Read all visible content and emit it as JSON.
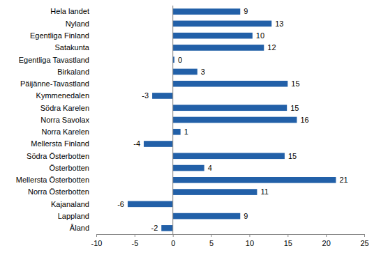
{
  "chart_data": {
    "type": "bar",
    "orientation": "horizontal",
    "categories": [
      "Hela landet",
      "Nyland",
      "Egentliga Finland",
      "Satakunta",
      "Egentliga Tavastland",
      "Birkaland",
      "Päijänne-Tavastland",
      "Kymmenedalen",
      "Södra Karelen",
      "Norra Savolax",
      "Norra Karelen",
      "Mellersta Finland",
      "Södra Österbotten",
      "Österbotten",
      "Mellersta Österbotten",
      "Norra Österbotten",
      "Kajanaland",
      "Lappland",
      "Åland"
    ],
    "values": [
      8.8,
      12.9,
      10.4,
      11.9,
      0.2,
      3.2,
      15.0,
      -2.7,
      14.9,
      16.2,
      1.0,
      -3.8,
      14.6,
      4.1,
      21.3,
      11.0,
      -5.9,
      8.8,
      -1.5
    ],
    "value_labels": [
      "9",
      "13",
      "10",
      "12",
      "0",
      "3",
      "15",
      "-3",
      "15",
      "16",
      "1",
      "-4",
      "15",
      "4",
      "21",
      "11",
      "-6",
      "9",
      "-2"
    ],
    "color": "#2260a8",
    "xlim": [
      -10,
      25
    ],
    "xticks": [
      -10,
      -5,
      0,
      5,
      10,
      15,
      20,
      25
    ],
    "grid": false,
    "data_labels": true
  }
}
